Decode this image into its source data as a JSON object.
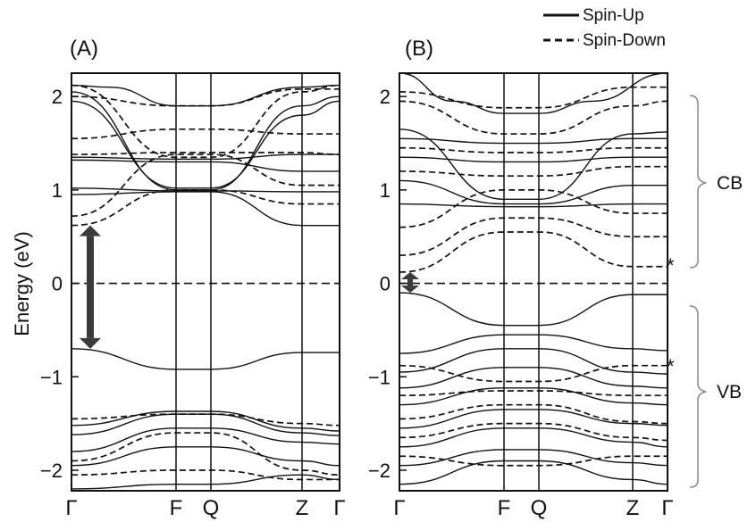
{
  "legend": [
    {
      "label": "Spin-Up",
      "style": "solid"
    },
    {
      "label": "Spin-Down",
      "style": "dashed"
    }
  ],
  "ylabel": "Energy (eV)",
  "colors": {
    "line": "#111111",
    "arrow": "#3a3a3a",
    "bracket": "#888888"
  },
  "annotations": {
    "cb": "CB",
    "vb": "VB",
    "star": "*"
  },
  "chart_data": [
    {
      "type": "line",
      "panel_label": "(A)",
      "ylabel": "Energy (eV)",
      "ylim": [
        -2.22,
        2.25
      ],
      "yticks": [
        2,
        1,
        0,
        -1,
        -2
      ],
      "kpoints": [
        "Γ",
        "F",
        "Q",
        "Z",
        "Γ"
      ],
      "kpoint_pos": [
        0,
        0.39,
        0.52,
        0.86,
        1.0
      ],
      "fermi_level": 0,
      "gap_arrow": {
        "from": 0.62,
        "to": -0.7
      },
      "series": [
        {
          "style": "solid",
          "x": [
            0,
            0.39,
            0.52,
            0.86,
            1
          ],
          "y": [
            -0.7,
            -0.92,
            -0.92,
            -0.74,
            -0.74
          ]
        },
        {
          "style": "solid",
          "x": [
            0,
            0.39,
            0.52,
            0.86,
            1
          ],
          "y": [
            -1.52,
            -1.37,
            -1.37,
            -1.55,
            -1.58
          ]
        },
        {
          "style": "solid",
          "x": [
            0,
            0.39,
            0.52,
            0.86,
            1
          ],
          "y": [
            -1.62,
            -1.4,
            -1.4,
            -1.6,
            -1.63
          ]
        },
        {
          "style": "solid",
          "x": [
            0,
            0.39,
            0.52,
            0.86,
            1
          ],
          "y": [
            -1.8,
            -1.55,
            -1.55,
            -1.7,
            -1.72
          ]
        },
        {
          "style": "solid",
          "x": [
            0,
            0.39,
            0.52,
            0.86,
            1
          ],
          "y": [
            -1.95,
            -1.75,
            -1.75,
            -1.9,
            -1.95
          ]
        },
        {
          "style": "solid",
          "x": [
            0,
            0.39,
            0.52,
            0.86,
            1
          ],
          "y": [
            -2.2,
            -2.15,
            -2.15,
            -2.05,
            -2.1
          ]
        },
        {
          "style": "solid",
          "x": [
            0,
            0.14,
            0.39,
            0.52,
            0.86,
            1
          ],
          "y": [
            2.12,
            2.1,
            1.9,
            1.9,
            2.1,
            2.12
          ]
        },
        {
          "style": "solid",
          "x": [
            0,
            0.39,
            0.52,
            0.86,
            1
          ],
          "y": [
            2.05,
            1.0,
            1.0,
            1.9,
            2.0
          ]
        },
        {
          "style": "solid",
          "x": [
            0,
            0.39,
            0.52,
            0.86,
            1
          ],
          "y": [
            1.95,
            1.02,
            1.02,
            1.8,
            1.95
          ]
        },
        {
          "style": "solid",
          "x": [
            0,
            0.39,
            0.52,
            0.86,
            1
          ],
          "y": [
            1.35,
            1.33,
            1.33,
            1.38,
            1.38
          ]
        },
        {
          "style": "solid",
          "x": [
            0,
            0.39,
            0.52,
            0.86,
            1
          ],
          "y": [
            1.32,
            1.3,
            1.3,
            1.2,
            1.2
          ]
        },
        {
          "style": "solid",
          "x": [
            0,
            0.39,
            0.52,
            0.86,
            1
          ],
          "y": [
            1.02,
            0.99,
            0.99,
            0.98,
            0.98
          ]
        },
        {
          "style": "solid",
          "x": [
            0,
            0.39,
            0.52,
            0.86,
            1
          ],
          "y": [
            0.95,
            0.98,
            0.98,
            0.62,
            0.62
          ]
        },
        {
          "style": "dashed",
          "x": [
            0,
            0.39,
            0.52,
            0.86,
            1
          ],
          "y": [
            0.62,
            1.0,
            1.0,
            0.85,
            0.85
          ]
        },
        {
          "style": "dashed",
          "x": [
            0,
            0.39,
            0.52,
            0.86,
            1
          ],
          "y": [
            0.72,
            1.38,
            1.38,
            1.05,
            1.05
          ]
        },
        {
          "style": "dashed",
          "x": [
            0,
            0.39,
            0.52,
            0.86,
            1
          ],
          "y": [
            1.55,
            1.65,
            1.65,
            1.6,
            1.6
          ]
        },
        {
          "style": "dashed",
          "x": [
            0,
            0.39,
            0.52,
            0.86,
            1
          ],
          "y": [
            1.38,
            1.4,
            1.4,
            1.4,
            1.38
          ]
        },
        {
          "style": "dashed",
          "x": [
            0,
            0.39,
            0.52,
            0.86,
            1
          ],
          "y": [
            2.0,
            1.9,
            1.9,
            2.08,
            2.08
          ]
        },
        {
          "style": "dashed",
          "x": [
            0,
            0.39,
            0.52,
            0.86,
            1
          ],
          "y": [
            2.12,
            1.35,
            1.35,
            2.05,
            2.12
          ]
        },
        {
          "style": "dashed",
          "x": [
            0,
            0.39,
            0.52,
            0.86,
            1
          ],
          "y": [
            -1.45,
            -1.4,
            -1.4,
            -1.5,
            -1.52
          ]
        },
        {
          "style": "dashed",
          "x": [
            0,
            0.39,
            0.52,
            0.86,
            1
          ],
          "y": [
            -1.9,
            -1.6,
            -1.6,
            -2.0,
            -2.05
          ]
        },
        {
          "style": "dashed",
          "x": [
            0,
            0.39,
            0.52,
            0.86,
            1
          ],
          "y": [
            -2.05,
            -2.0,
            -2.0,
            -2.1,
            -2.1
          ]
        }
      ]
    },
    {
      "type": "line",
      "panel_label": "(B)",
      "ylim": [
        -2.22,
        2.25
      ],
      "yticks": [
        2,
        1,
        0,
        -1,
        -2
      ],
      "kpoints": [
        "Γ",
        "F",
        "Q",
        "Z",
        "Γ"
      ],
      "kpoint_pos": [
        0,
        0.39,
        0.52,
        0.87,
        1.0
      ],
      "fermi_level": 0,
      "gap_arrow": {
        "from": 0.12,
        "to": -0.1
      },
      "series": [
        {
          "style": "solid",
          "x": [
            0,
            0.39,
            0.52,
            0.87,
            1
          ],
          "y": [
            -0.1,
            -0.45,
            -0.45,
            -0.12,
            -0.12
          ]
        },
        {
          "style": "solid",
          "x": [
            0,
            0.39,
            0.52,
            0.87,
            1
          ],
          "y": [
            -0.75,
            -0.55,
            -0.55,
            -0.7,
            -0.72
          ]
        },
        {
          "style": "solid",
          "x": [
            0,
            0.39,
            0.52,
            0.87,
            1
          ],
          "y": [
            -0.95,
            -0.7,
            -0.7,
            -0.95,
            -0.97
          ]
        },
        {
          "style": "solid",
          "x": [
            0,
            0.39,
            0.52,
            0.87,
            1
          ],
          "y": [
            -1.12,
            -0.9,
            -0.9,
            -1.1,
            -1.12
          ]
        },
        {
          "style": "solid",
          "x": [
            0,
            0.39,
            0.52,
            0.87,
            1
          ],
          "y": [
            -1.3,
            -1.12,
            -1.12,
            -1.28,
            -1.3
          ]
        },
        {
          "style": "solid",
          "x": [
            0,
            0.39,
            0.52,
            0.87,
            1
          ],
          "y": [
            -1.55,
            -1.35,
            -1.35,
            -1.5,
            -1.52
          ]
        },
        {
          "style": "solid",
          "x": [
            0,
            0.39,
            0.52,
            0.87,
            1
          ],
          "y": [
            -1.75,
            -1.55,
            -1.55,
            -1.7,
            -1.75
          ]
        },
        {
          "style": "solid",
          "x": [
            0,
            0.39,
            0.52,
            0.87,
            1
          ],
          "y": [
            -1.95,
            -1.78,
            -1.78,
            -1.92,
            -1.95
          ]
        },
        {
          "style": "solid",
          "x": [
            0,
            0.39,
            0.52,
            0.87,
            1
          ],
          "y": [
            -2.15,
            -1.9,
            -1.9,
            -2.1,
            -2.15
          ]
        },
        {
          "style": "solid",
          "x": [
            0,
            0.2,
            0.39,
            0.52,
            0.72,
            1
          ],
          "y": [
            2.25,
            1.95,
            1.82,
            1.82,
            1.95,
            2.25
          ]
        },
        {
          "style": "solid",
          "x": [
            0,
            0.39,
            0.52,
            0.87,
            1
          ],
          "y": [
            1.65,
            0.9,
            0.9,
            1.6,
            1.62
          ]
        },
        {
          "style": "solid",
          "x": [
            0,
            0.39,
            0.52,
            0.87,
            1
          ],
          "y": [
            1.55,
            1.5,
            1.5,
            1.55,
            1.55
          ]
        },
        {
          "style": "solid",
          "x": [
            0,
            0.39,
            0.52,
            0.87,
            1
          ],
          "y": [
            1.35,
            1.3,
            1.3,
            1.35,
            1.35
          ]
        },
        {
          "style": "solid",
          "x": [
            0,
            0.39,
            0.52,
            0.87,
            1
          ],
          "y": [
            1.1,
            0.85,
            0.85,
            1.05,
            1.05
          ]
        },
        {
          "style": "solid",
          "x": [
            0,
            0.39,
            0.52,
            0.87,
            1
          ],
          "y": [
            0.85,
            0.82,
            0.82,
            0.85,
            0.85
          ]
        },
        {
          "style": "dashed",
          "x": [
            0,
            0.39,
            0.52,
            0.87,
            1
          ],
          "y": [
            0.12,
            0.55,
            0.55,
            0.18,
            0.18
          ]
        },
        {
          "style": "dashed",
          "x": [
            0,
            0.39,
            0.52,
            0.87,
            1
          ],
          "y": [
            0.3,
            0.7,
            0.7,
            0.5,
            0.5
          ]
        },
        {
          "style": "dashed",
          "x": [
            0,
            0.39,
            0.52,
            0.87,
            1
          ],
          "y": [
            0.6,
            1.0,
            1.0,
            0.75,
            0.75
          ]
        },
        {
          "style": "dashed",
          "x": [
            0,
            0.39,
            0.52,
            0.87,
            1
          ],
          "y": [
            1.2,
            1.15,
            1.15,
            1.25,
            1.25
          ]
        },
        {
          "style": "dashed",
          "x": [
            0,
            0.39,
            0.52,
            0.87,
            1
          ],
          "y": [
            1.45,
            1.4,
            1.4,
            1.45,
            1.45
          ]
        },
        {
          "style": "dashed",
          "x": [
            0,
            0.39,
            0.52,
            0.87,
            1
          ],
          "y": [
            2.05,
            1.88,
            1.88,
            2.1,
            2.1
          ]
        },
        {
          "style": "dashed",
          "x": [
            0,
            0.39,
            0.52,
            0.87,
            1
          ],
          "y": [
            1.95,
            1.6,
            1.6,
            1.9,
            1.95
          ]
        },
        {
          "style": "dashed",
          "x": [
            0,
            0.39,
            0.52,
            0.87,
            1
          ],
          "y": [
            -0.88,
            -1.05,
            -1.05,
            -0.88,
            -0.88
          ]
        },
        {
          "style": "dashed",
          "x": [
            0,
            0.39,
            0.52,
            0.87,
            1
          ],
          "y": [
            -1.2,
            -1.15,
            -1.15,
            -1.2,
            -1.2
          ]
        },
        {
          "style": "dashed",
          "x": [
            0,
            0.39,
            0.52,
            0.87,
            1
          ],
          "y": [
            -1.45,
            -1.3,
            -1.3,
            -1.48,
            -1.5
          ]
        },
        {
          "style": "dashed",
          "x": [
            0,
            0.39,
            0.52,
            0.87,
            1
          ],
          "y": [
            -1.65,
            -1.5,
            -1.5,
            -1.65,
            -1.68
          ]
        },
        {
          "style": "dashed",
          "x": [
            0,
            0.39,
            0.52,
            0.87,
            1
          ],
          "y": [
            -1.85,
            -1.95,
            -1.95,
            -1.85,
            -1.85
          ]
        }
      ]
    }
  ]
}
